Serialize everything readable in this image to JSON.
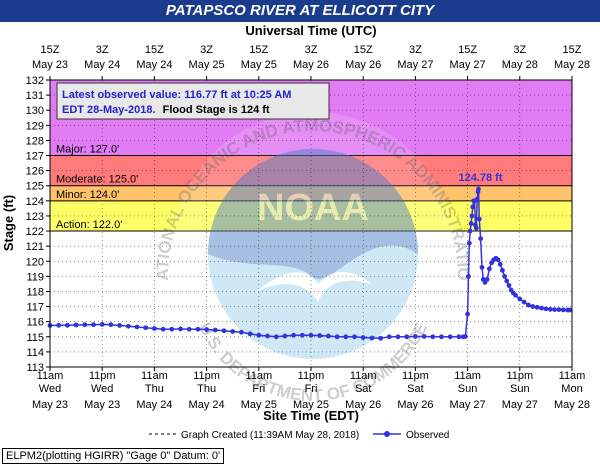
{
  "title": "PATAPSCO RIVER AT ELLICOTT CITY",
  "chart_data": {
    "type": "line",
    "top_axis_label": "Universal Time (UTC)",
    "xlabel": "Site Time (EDT)",
    "ylabel": "Stage (ft)",
    "ylim": [
      113,
      132
    ],
    "y_ticks": [
      113,
      114,
      115,
      116,
      117,
      118,
      119,
      120,
      121,
      122,
      123,
      124,
      125,
      126,
      127,
      128,
      129,
      130,
      131,
      132
    ],
    "x_range_hours_utc": [
      -4,
      116
    ],
    "top_ticks": [
      {
        "h": -4,
        "l1": "15Z",
        "l2": "May 23"
      },
      {
        "h": 8,
        "l1": "3Z",
        "l2": "May 24"
      },
      {
        "h": 20,
        "l1": "15Z",
        "l2": "May 24"
      },
      {
        "h": 32,
        "l1": "3Z",
        "l2": "May 25"
      },
      {
        "h": 44,
        "l1": "15Z",
        "l2": "May 25"
      },
      {
        "h": 56,
        "l1": "3Z",
        "l2": "May 26"
      },
      {
        "h": 68,
        "l1": "15Z",
        "l2": "May 26"
      },
      {
        "h": 80,
        "l1": "3Z",
        "l2": "May 27"
      },
      {
        "h": 92,
        "l1": "15Z",
        "l2": "May 27"
      },
      {
        "h": 104,
        "l1": "3Z",
        "l2": "May 28"
      },
      {
        "h": 116,
        "l1": "15Z",
        "l2": "May 28"
      }
    ],
    "bottom_ticks": [
      {
        "h": -4,
        "l1": "11am",
        "l2": "Wed",
        "l3": "May 23"
      },
      {
        "h": 8,
        "l1": "11pm",
        "l2": "Wed",
        "l3": "May 23"
      },
      {
        "h": 20,
        "l1": "11am",
        "l2": "Thu",
        "l3": "May 24"
      },
      {
        "h": 32,
        "l1": "11pm",
        "l2": "Thu",
        "l3": "May 24"
      },
      {
        "h": 44,
        "l1": "11am",
        "l2": "Fri",
        "l3": "May 25"
      },
      {
        "h": 56,
        "l1": "11pm",
        "l2": "Fri",
        "l3": "May 25"
      },
      {
        "h": 68,
        "l1": "11am",
        "l2": "Sat",
        "l3": "May 26"
      },
      {
        "h": 80,
        "l1": "11pm",
        "l2": "Sat",
        "l3": "May 26"
      },
      {
        "h": 92,
        "l1": "11am",
        "l2": "Sun",
        "l3": "May 27"
      },
      {
        "h": 104,
        "l1": "11pm",
        "l2": "Sun",
        "l3": "May 27"
      },
      {
        "h": 116,
        "l1": "11am",
        "l2": "Mon",
        "l3": "May 28"
      }
    ],
    "flood_bands": [
      {
        "name": "Action",
        "from": 122,
        "to": 124,
        "color": "#ffff66",
        "label": "Action: 122.0'"
      },
      {
        "name": "Minor",
        "from": 124,
        "to": 125,
        "color": "#ffc26b",
        "label": "Minor: 124.0'"
      },
      {
        "name": "Moderate",
        "from": 125,
        "to": 127,
        "color": "#ff7a7a",
        "label": "Moderate: 125.0'"
      },
      {
        "name": "Major",
        "from": 127,
        "to": 132,
        "color": "#e17cf5",
        "label": "Major: 127.0'"
      }
    ],
    "annotation": {
      "line1": "Latest observed value: 116.77 ft at 10:25 AM",
      "line2a": "EDT 28-May-2018.",
      "line2b": "Flood Stage is 124 ft"
    },
    "peak_label": "124.78 ft",
    "peak_point": {
      "h": 94.5,
      "y": 124.78
    },
    "series": [
      {
        "name": "Observed",
        "color": "#3333dd",
        "x_hours_utc": [
          -4,
          -2,
          0,
          2,
          4,
          6,
          8,
          10,
          12,
          14,
          16,
          18,
          20,
          22,
          24,
          26,
          28,
          30,
          32,
          34,
          36,
          38,
          40,
          42,
          44,
          46,
          48,
          50,
          52,
          54,
          56,
          58,
          60,
          62,
          64,
          66,
          68,
          70,
          72,
          74,
          76,
          78,
          80,
          82,
          84,
          86,
          88,
          90,
          91,
          91.5,
          92,
          92.2,
          92.4,
          92.6,
          92.8,
          93,
          93.2,
          93.4,
          93.6,
          93.8,
          94,
          94.2,
          94.4,
          94.5,
          94.7,
          95,
          95.3,
          95.6,
          96,
          96.5,
          97,
          97.5,
          98,
          98.5,
          99,
          99.5,
          100,
          100.5,
          101,
          101.5,
          102,
          102.5,
          103,
          104,
          105,
          106,
          107,
          108,
          109,
          110,
          111,
          112,
          113,
          114,
          115,
          115.5
        ],
        "y": [
          115.75,
          115.76,
          115.76,
          115.78,
          115.8,
          115.8,
          115.82,
          115.8,
          115.75,
          115.7,
          115.65,
          115.6,
          115.55,
          115.5,
          115.5,
          115.52,
          115.5,
          115.5,
          115.48,
          115.45,
          115.4,
          115.35,
          115.3,
          115.2,
          115.1,
          115.05,
          115.0,
          115.05,
          115.1,
          115.1,
          115.1,
          115.08,
          115.05,
          115.0,
          115.0,
          115.0,
          114.95,
          114.92,
          114.9,
          115.0,
          115.0,
          115.0,
          115.02,
          115.02,
          115.0,
          115.0,
          115.0,
          115.0,
          115.0,
          115.02,
          116.5,
          119.0,
          121.2,
          122.0,
          122.5,
          123.0,
          123.6,
          124.0,
          124.0,
          122.4,
          122.2,
          124.1,
          124.6,
          124.78,
          122.8,
          121.5,
          119.6,
          118.8,
          118.6,
          118.8,
          119.5,
          119.9,
          120.1,
          120.2,
          120.1,
          119.8,
          119.4,
          119.0,
          118.7,
          118.4,
          118.1,
          117.9,
          117.75,
          117.5,
          117.3,
          117.1,
          117.0,
          116.95,
          116.9,
          116.85,
          116.82,
          116.8,
          116.8,
          116.78,
          116.77,
          116.77
        ]
      }
    ],
    "legend_items": [
      {
        "text": "Graph Created (11:39AM May 28, 2018)",
        "style": "dashed"
      },
      {
        "text": "Observed",
        "style": "marker-line"
      }
    ],
    "watermark": {
      "ring_top": "NATIONAL OCEANIC AND ATMOSPHERIC ADMINISTRATION",
      "ring_bottom": "U.S. DEPARTMENT OF COMMERCE",
      "center": "NOAA"
    }
  },
  "footer": "ELPM2(plotting HGIRR) \"Gage 0\" Datum: 0'"
}
